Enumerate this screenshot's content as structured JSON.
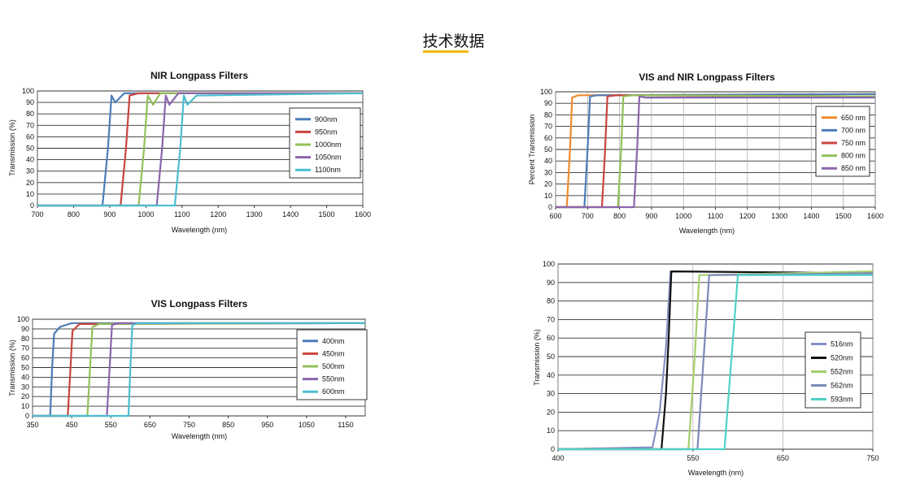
{
  "page": {
    "title": "技术数据"
  },
  "chart_data": [
    {
      "id": "nir",
      "type": "line",
      "title": "NIR Longpass Filters",
      "xlabel": "Wavelength (nm)",
      "ylabel": "Transmission (%)",
      "xlim": [
        700,
        1600
      ],
      "ylim": [
        0,
        100
      ],
      "xticks": [
        700,
        800,
        900,
        1000,
        1100,
        1200,
        1300,
        1400,
        1500,
        1600
      ],
      "yticks": [
        0,
        10,
        20,
        30,
        40,
        50,
        60,
        70,
        80,
        90,
        100
      ],
      "grid": "horizontal",
      "legend_position": "right",
      "series": [
        {
          "name": "900nm",
          "color": "#4b7db8",
          "points": [
            [
              700,
              0
            ],
            [
              880,
              0
            ],
            [
              895,
              50
            ],
            [
              905,
              96
            ],
            [
              915,
              90
            ],
            [
              940,
              98
            ],
            [
              1600,
              98
            ]
          ]
        },
        {
          "name": "950nm",
          "color": "#c9443f",
          "points": [
            [
              700,
              0
            ],
            [
              930,
              0
            ],
            [
              945,
              50
            ],
            [
              955,
              96
            ],
            [
              980,
              98
            ],
            [
              1600,
              98
            ]
          ]
        },
        {
          "name": "1000nm",
          "color": "#93c05b",
          "points": [
            [
              700,
              0
            ],
            [
              980,
              0
            ],
            [
              995,
              50
            ],
            [
              1005,
              96
            ],
            [
              1020,
              88
            ],
            [
              1040,
              98
            ],
            [
              1600,
              98
            ]
          ]
        },
        {
          "name": "1050nm",
          "color": "#8b65ac",
          "points": [
            [
              700,
              0
            ],
            [
              1030,
              0
            ],
            [
              1045,
              50
            ],
            [
              1055,
              96
            ],
            [
              1065,
              88
            ],
            [
              1090,
              98
            ],
            [
              1600,
              98
            ]
          ]
        },
        {
          "name": "1100nm",
          "color": "#4bbed0",
          "points": [
            [
              700,
              0
            ],
            [
              1080,
              0
            ],
            [
              1095,
              50
            ],
            [
              1105,
              96
            ],
            [
              1115,
              88
            ],
            [
              1140,
              96
            ],
            [
              1600,
              98
            ]
          ]
        }
      ]
    },
    {
      "id": "visnir",
      "type": "line",
      "title": "VIS and NIR Longpass Filters",
      "xlabel": "Wavelength (nm)",
      "ylabel": "Percent Transmission",
      "xlim": [
        600,
        1600
      ],
      "ylim": [
        0,
        100
      ],
      "xticks": [
        600,
        700,
        800,
        900,
        1000,
        1100,
        1200,
        1300,
        1400,
        1500,
        1600
      ],
      "yticks": [
        0,
        10,
        20,
        30,
        40,
        50,
        60,
        70,
        80,
        90,
        100
      ],
      "grid": "both",
      "legend_position": "right",
      "series": [
        {
          "name": "650 nm",
          "color": "#ef8b2c",
          "points": [
            [
              600,
              0
            ],
            [
              635,
              0
            ],
            [
              645,
              50
            ],
            [
              652,
              95
            ],
            [
              670,
              97
            ],
            [
              1600,
              98
            ]
          ]
        },
        {
          "name": "700 nm",
          "color": "#4b7db8",
          "points": [
            [
              600,
              0
            ],
            [
              690,
              0
            ],
            [
              700,
              50
            ],
            [
              708,
              96
            ],
            [
              730,
              97
            ],
            [
              1600,
              98
            ]
          ]
        },
        {
          "name": "750 nm",
          "color": "#c9443f",
          "points": [
            [
              600,
              0
            ],
            [
              745,
              0
            ],
            [
              755,
              50
            ],
            [
              762,
              96
            ],
            [
              790,
              97
            ],
            [
              1600,
              96
            ]
          ]
        },
        {
          "name": "800 nm",
          "color": "#93c05b",
          "points": [
            [
              600,
              0
            ],
            [
              795,
              0
            ],
            [
              805,
              50
            ],
            [
              812,
              96
            ],
            [
              840,
              97
            ],
            [
              1600,
              96
            ]
          ]
        },
        {
          "name": "850 nm",
          "color": "#8b65ac",
          "points": [
            [
              600,
              0
            ],
            [
              845,
              0
            ],
            [
              855,
              50
            ],
            [
              862,
              96
            ],
            [
              880,
              95
            ],
            [
              1600,
              95
            ]
          ]
        }
      ]
    },
    {
      "id": "vis",
      "type": "line",
      "title": "VIS Longpass Filters",
      "xlabel": "Wavelength (nm)",
      "ylabel": "Transmission (%)",
      "xlim": [
        350,
        1200
      ],
      "ylim": [
        0,
        100
      ],
      "xticks": [
        350,
        450,
        550,
        650,
        750,
        850,
        950,
        1050,
        1150
      ],
      "yticks": [
        0,
        10,
        20,
        30,
        40,
        50,
        60,
        70,
        80,
        90,
        100
      ],
      "grid": "horizontal",
      "legend_position": "right",
      "series": [
        {
          "name": "400nm",
          "color": "#4b7db8",
          "points": [
            [
              350,
              0
            ],
            [
              395,
              0
            ],
            [
              400,
              50
            ],
            [
              405,
              85
            ],
            [
              420,
              92
            ],
            [
              450,
              96
            ],
            [
              1200,
              96
            ]
          ]
        },
        {
          "name": "450nm",
          "color": "#c9443f",
          "points": [
            [
              350,
              0
            ],
            [
              440,
              0
            ],
            [
              447,
              50
            ],
            [
              452,
              88
            ],
            [
              470,
              95
            ],
            [
              1200,
              96
            ]
          ]
        },
        {
          "name": "500nm",
          "color": "#93c05b",
          "points": [
            [
              350,
              0
            ],
            [
              490,
              0
            ],
            [
              497,
              50
            ],
            [
              503,
              92
            ],
            [
              520,
              95
            ],
            [
              1200,
              96
            ]
          ]
        },
        {
          "name": "550nm",
          "color": "#8b65ac",
          "points": [
            [
              350,
              0
            ],
            [
              540,
              0
            ],
            [
              547,
              50
            ],
            [
              553,
              94
            ],
            [
              570,
              96
            ],
            [
              1200,
              96
            ]
          ]
        },
        {
          "name": "600nm",
          "color": "#4bbed0",
          "points": [
            [
              350,
              0
            ],
            [
              595,
              0
            ],
            [
              600,
              50
            ],
            [
              605,
              94
            ],
            [
              620,
              96
            ],
            [
              1200,
              96
            ]
          ]
        }
      ]
    },
    {
      "id": "green",
      "type": "line",
      "title": "",
      "xlabel": "Wavelength (nm)",
      "ylabel": "Transmission (%)",
      "xlim": [
        400,
        750
      ],
      "ylim": [
        0,
        100
      ],
      "xticks": [
        400,
        550,
        650,
        750
      ],
      "yticks": [
        0,
        10,
        20,
        30,
        40,
        50,
        60,
        70,
        80,
        90,
        100
      ],
      "grid": "both",
      "legend_position": "right",
      "series": [
        {
          "name": "516nm",
          "color": "#8790c4",
          "points": [
            [
              400,
              0
            ],
            [
              505,
              1
            ],
            [
              513,
              20
            ],
            [
              520,
              55
            ],
            [
              525,
              96
            ],
            [
              750,
              95
            ]
          ]
        },
        {
          "name": "520nm",
          "color": "#111111",
          "points": [
            [
              400,
              0
            ],
            [
              515,
              0
            ],
            [
              520,
              30
            ],
            [
              523,
              60
            ],
            [
              526,
              96
            ],
            [
              750,
              95
            ]
          ]
        },
        {
          "name": "552nm",
          "color": "#a5cf6d",
          "points": [
            [
              400,
              0
            ],
            [
              545,
              0
            ],
            [
              552,
              50
            ],
            [
              557,
              94
            ],
            [
              750,
              96
            ]
          ]
        },
        {
          "name": "562nm",
          "color": "#7d8ab8",
          "points": [
            [
              400,
              0
            ],
            [
              555,
              0
            ],
            [
              562,
              50
            ],
            [
              568,
              94
            ],
            [
              750,
              95
            ]
          ]
        },
        {
          "name": "593nm",
          "color": "#4fd1c7",
          "points": [
            [
              400,
              0
            ],
            [
              585,
              0
            ],
            [
              593,
              50
            ],
            [
              600,
              94
            ],
            [
              750,
              94
            ]
          ]
        }
      ]
    }
  ]
}
